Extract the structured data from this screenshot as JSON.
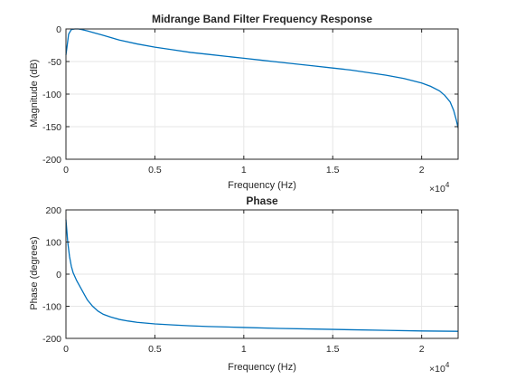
{
  "chart_data": [
    {
      "type": "line",
      "title": "Midrange Band Filter Frequency Response",
      "xlabel": "Frequency (Hz)",
      "ylabel": "Magnitude (dB)",
      "xlim": [
        0,
        22050
      ],
      "ylim": [
        -200,
        0
      ],
      "x_exponent_label": "×10",
      "x_exponent": "4",
      "xticks": [
        0,
        5000,
        10000,
        15000,
        20000
      ],
      "xtick_labels": [
        "0",
        "0.5",
        "1",
        "1.5",
        "2"
      ],
      "yticks": [
        -200,
        -150,
        -100,
        -50,
        0
      ],
      "ytick_labels": [
        "-200",
        "-150",
        "-100",
        "-50",
        "0"
      ],
      "grid": true,
      "line_color": "#0072bd",
      "series": [
        {
          "x": [
            0,
            150,
            300,
            500,
            700,
            900,
            1200,
            1600,
            2000,
            2500,
            3000,
            4000,
            5000,
            6000,
            7000,
            8000,
            9000,
            10000,
            11000,
            12000,
            13000,
            14000,
            15000,
            16000,
            17000,
            18000,
            19000,
            20000,
            20500,
            21000,
            21300,
            21600,
            21800,
            21950,
            22050
          ],
          "y": [
            -40,
            -8,
            -1,
            0,
            0,
            -1,
            -3,
            -6,
            -9,
            -13,
            -17,
            -23,
            -28,
            -32,
            -36,
            -39,
            -42,
            -45,
            -48,
            -51,
            -54,
            -57,
            -60,
            -63,
            -67,
            -71,
            -76,
            -83,
            -88,
            -95,
            -102,
            -112,
            -125,
            -140,
            -152
          ]
        }
      ]
    },
    {
      "type": "line",
      "title": "Phase",
      "xlabel": "Frequency (Hz)",
      "ylabel": "Phase (degrees)",
      "xlim": [
        0,
        22050
      ],
      "ylim": [
        -200,
        200
      ],
      "x_exponent_label": "×10",
      "x_exponent": "4",
      "xticks": [
        0,
        5000,
        10000,
        15000,
        20000
      ],
      "xtick_labels": [
        "0",
        "0.5",
        "1",
        "1.5",
        "2"
      ],
      "yticks": [
        -200,
        -100,
        0,
        100,
        200
      ],
      "ytick_labels": [
        "-200",
        "-100",
        "0",
        "100",
        "200"
      ],
      "grid": true,
      "line_color": "#0072bd",
      "series": [
        {
          "x": [
            0,
            100,
            200,
            300,
            400,
            600,
            800,
            1000,
            1200,
            1500,
            1800,
            2100,
            2500,
            3000,
            3500,
            4000,
            5000,
            6000,
            7000,
            8000,
            10000,
            12000,
            14000,
            16000,
            18000,
            20000,
            22050
          ],
          "y": [
            170,
            100,
            55,
            25,
            5,
            -20,
            -40,
            -60,
            -80,
            -100,
            -115,
            -125,
            -133,
            -141,
            -146,
            -150,
            -155,
            -158,
            -161,
            -163,
            -166,
            -169,
            -171,
            -173,
            -175,
            -177,
            -178
          ]
        }
      ]
    }
  ]
}
